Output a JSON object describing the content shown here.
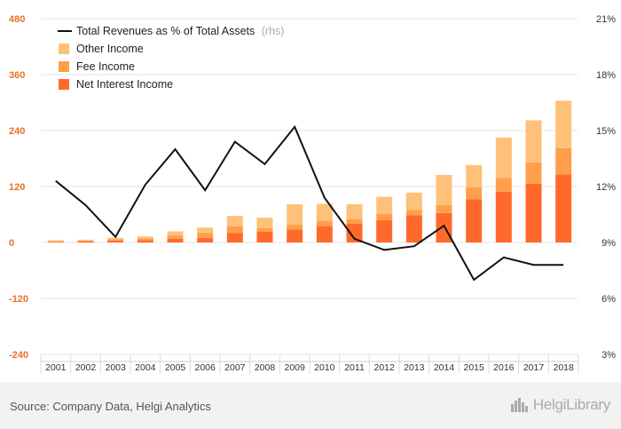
{
  "chart_data": {
    "type": "bar",
    "categories": [
      "2001",
      "2002",
      "2003",
      "2004",
      "2005",
      "2006",
      "2007",
      "2008",
      "2009",
      "2010",
      "2011",
      "2012",
      "2013",
      "2014",
      "2015",
      "2016",
      "2017",
      "2018"
    ],
    "series": [
      {
        "name": "Net Interest Income",
        "kind": "stacked-bar",
        "axis": "left",
        "values": [
          1,
          2,
          4,
          5,
          8,
          10,
          20,
          23,
          28,
          35,
          40,
          48,
          58,
          63,
          93,
          109,
          126,
          146
        ]
      },
      {
        "name": "Fee Income",
        "kind": "stacked-bar",
        "axis": "left",
        "values": [
          1,
          2,
          3,
          4,
          7,
          10,
          15,
          8,
          10,
          12,
          10,
          13,
          12,
          17,
          25,
          29,
          46,
          56
        ]
      },
      {
        "name": "Other Income",
        "kind": "stacked-bar",
        "axis": "left",
        "values": [
          3,
          2,
          3,
          4,
          9,
          12,
          22,
          22,
          44,
          36,
          32,
          37,
          37,
          65,
          48,
          87,
          90,
          102
        ]
      },
      {
        "name": "Total Revenues as % of Total Assets",
        "legend_suffix": "(rhs)",
        "kind": "line",
        "axis": "right",
        "values": [
          12.3,
          11.0,
          9.3,
          12.1,
          14.0,
          11.8,
          14.4,
          13.2,
          15.2,
          11.4,
          9.2,
          8.6,
          8.8,
          9.9,
          7.0,
          8.2,
          7.8,
          7.8
        ]
      }
    ],
    "y_left": {
      "ylim": [
        -240,
        480
      ],
      "ticks": [
        -240,
        -120,
        0,
        120,
        240,
        360,
        480
      ]
    },
    "y_right": {
      "ylim": [
        3,
        21
      ],
      "ticks": [
        "3%",
        "6%",
        "9%",
        "12%",
        "15%",
        "18%",
        "21%"
      ],
      "tick_values": [
        3,
        6,
        9,
        12,
        15,
        18,
        21
      ]
    },
    "colors": {
      "Net Interest Income": "#ff6a2b",
      "Fee Income": "#ff9f4a",
      "Other Income": "#ffc07a",
      "line": "#111111",
      "left_tick": "#e8702a",
      "grid": "#e6e6e6"
    },
    "grid": true,
    "legend_position": "top-left"
  },
  "footer": {
    "source": "Source: Company Data, Helgi Analytics",
    "brand": "HelgiLibrary",
    "brand_icon": "city-skyline-icon"
  }
}
